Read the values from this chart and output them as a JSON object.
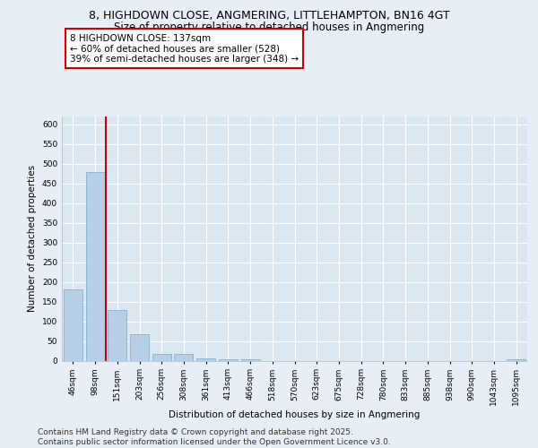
{
  "title_line1": "8, HIGHDOWN CLOSE, ANGMERING, LITTLEHAMPTON, BN16 4GT",
  "title_line2": "Size of property relative to detached houses in Angmering",
  "xlabel": "Distribution of detached houses by size in Angmering",
  "ylabel": "Number of detached properties",
  "categories": [
    "46sqm",
    "98sqm",
    "151sqm",
    "203sqm",
    "256sqm",
    "308sqm",
    "361sqm",
    "413sqm",
    "466sqm",
    "518sqm",
    "570sqm",
    "623sqm",
    "675sqm",
    "728sqm",
    "780sqm",
    "833sqm",
    "885sqm",
    "938sqm",
    "990sqm",
    "1043sqm",
    "1095sqm"
  ],
  "values": [
    181,
    480,
    128,
    68,
    17,
    16,
    6,
    4,
    3,
    0,
    0,
    0,
    0,
    0,
    0,
    0,
    0,
    0,
    0,
    0,
    3
  ],
  "bar_color": "#b8cfe8",
  "bar_edge_color": "#7aa8cc",
  "vline_color": "#cc0000",
  "vline_pos": 1.5,
  "annotation_text": "8 HIGHDOWN CLOSE: 137sqm\n← 60% of detached houses are smaller (528)\n39% of semi-detached houses are larger (348) →",
  "annotation_box_facecolor": "#ffffff",
  "annotation_box_edgecolor": "#cc0000",
  "ylim": [
    0,
    620
  ],
  "yticks": [
    0,
    50,
    100,
    150,
    200,
    250,
    300,
    350,
    400,
    450,
    500,
    550,
    600
  ],
  "bg_color": "#e8eef5",
  "plot_bg_color": "#dce7f0",
  "grid_color": "#ffffff",
  "footer_text": "Contains HM Land Registry data © Crown copyright and database right 2025.\nContains public sector information licensed under the Open Government Licence v3.0.",
  "title_fontsize": 9,
  "subtitle_fontsize": 8.5,
  "axis_label_fontsize": 7.5,
  "tick_fontsize": 6.5,
  "annotation_fontsize": 7.5,
  "footer_fontsize": 6.5
}
